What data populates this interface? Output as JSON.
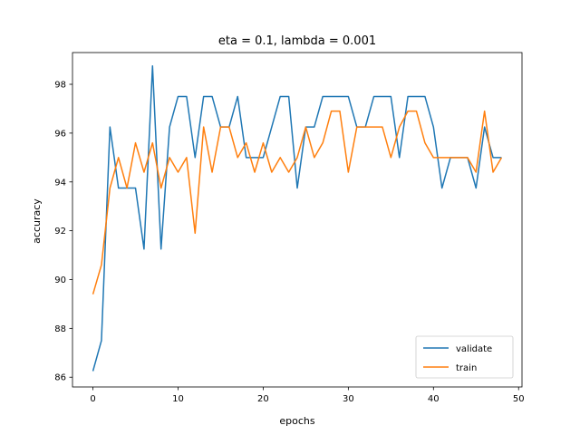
{
  "chart_data": {
    "type": "line",
    "title": "eta = 0.1, lambda = 0.001",
    "xlabel": "epochs",
    "ylabel": "accuracy",
    "xlim": [
      -2.4,
      50.4
    ],
    "ylim": [
      85.6,
      99.3
    ],
    "xticks": [
      0,
      10,
      20,
      30,
      40,
      50
    ],
    "yticks": [
      86,
      88,
      90,
      92,
      94,
      96,
      98
    ],
    "grid": false,
    "legend_position": "lower-right",
    "x": [
      0,
      1,
      2,
      3,
      4,
      5,
      6,
      7,
      8,
      9,
      10,
      11,
      12,
      13,
      14,
      15,
      16,
      17,
      18,
      19,
      20,
      21,
      22,
      23,
      24,
      25,
      26,
      27,
      28,
      29,
      30,
      31,
      32,
      33,
      34,
      35,
      36,
      37,
      38,
      39,
      40,
      41,
      42,
      43,
      44,
      45,
      46,
      47,
      48
    ],
    "series": [
      {
        "name": "validate",
        "color": "#1f77b4",
        "values": [
          86.25,
          87.5,
          96.25,
          93.75,
          93.75,
          93.75,
          91.25,
          98.75,
          91.25,
          96.25,
          97.5,
          97.5,
          95.0,
          97.5,
          97.5,
          96.25,
          96.25,
          97.5,
          95.0,
          95.0,
          95.0,
          96.25,
          97.5,
          97.5,
          93.75,
          96.25,
          96.25,
          97.5,
          97.5,
          97.5,
          97.5,
          96.25,
          96.25,
          97.5,
          97.5,
          97.5,
          95.0,
          97.5,
          97.5,
          97.5,
          96.25,
          93.75,
          95.0,
          95.0,
          95.0,
          93.75,
          96.25,
          95.0,
          95.0
        ]
      },
      {
        "name": "train",
        "color": "#ff7f0e",
        "values": [
          89.4,
          90.6,
          93.75,
          95.0,
          93.75,
          95.6,
          94.4,
          95.6,
          93.75,
          95.0,
          94.4,
          95.0,
          91.9,
          96.25,
          94.4,
          96.25,
          96.25,
          95.0,
          95.6,
          94.4,
          95.6,
          94.4,
          95.0,
          94.4,
          95.0,
          96.25,
          95.0,
          95.6,
          96.9,
          96.9,
          94.4,
          96.25,
          96.25,
          96.25,
          96.25,
          95.0,
          96.25,
          96.9,
          96.9,
          95.6,
          95.0,
          95.0,
          95.0,
          95.0,
          95.0,
          94.4,
          96.9,
          94.4,
          95.0
        ]
      }
    ]
  }
}
